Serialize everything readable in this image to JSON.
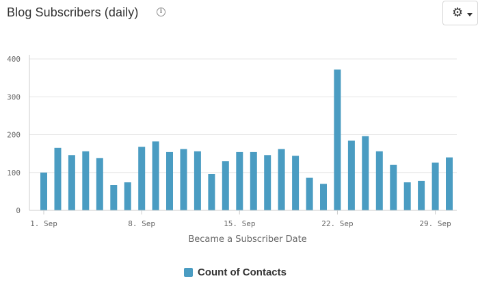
{
  "header": {
    "title": "Blog Subscribers (daily)",
    "info_icon": "info-icon",
    "settings_icon": "gear-icon"
  },
  "colors": {
    "bar": "#4a9cc2",
    "grid": "#e6e6e6",
    "axis": "#cccccc"
  },
  "chart_data": {
    "type": "bar",
    "xlabel": "Became a Subscriber Date",
    "ylabel": "",
    "ylim": [
      0,
      400
    ],
    "yticks": [
      0,
      100,
      200,
      300,
      400
    ],
    "grid": true,
    "legend_position": "bottom",
    "x_tick_labels": [
      {
        "day": 1,
        "label": "1. Sep"
      },
      {
        "day": 8,
        "label": "8. Sep"
      },
      {
        "day": 15,
        "label": "15. Sep"
      },
      {
        "day": 22,
        "label": "22. Sep"
      },
      {
        "day": 29,
        "label": "29. Sep"
      }
    ],
    "categories": [
      "2023-09-01",
      "2023-09-02",
      "2023-09-03",
      "2023-09-04",
      "2023-09-05",
      "2023-09-06",
      "2023-09-07",
      "2023-09-08",
      "2023-09-09",
      "2023-09-10",
      "2023-09-11",
      "2023-09-12",
      "2023-09-13",
      "2023-09-14",
      "2023-09-15",
      "2023-09-16",
      "2023-09-17",
      "2023-09-18",
      "2023-09-19",
      "2023-09-20",
      "2023-09-21",
      "2023-09-22",
      "2023-09-23",
      "2023-09-24",
      "2023-09-25",
      "2023-09-26",
      "2023-09-27",
      "2023-09-28",
      "2023-09-29",
      "2023-09-30"
    ],
    "series": [
      {
        "name": "Count of Contacts",
        "values": [
          100,
          165,
          146,
          156,
          138,
          67,
          74,
          168,
          182,
          154,
          162,
          156,
          96,
          130,
          154,
          154,
          146,
          162,
          144,
          86,
          70,
          372,
          184,
          196,
          156,
          120,
          74,
          78,
          126,
          140
        ]
      }
    ]
  }
}
